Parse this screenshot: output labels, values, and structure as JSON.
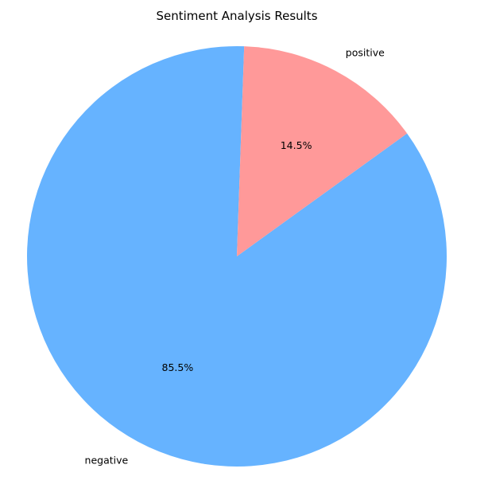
{
  "chart_data": {
    "type": "pie",
    "title": "Sentiment Analysis Results",
    "start_angle_deg": 88,
    "direction": "counterclockwise",
    "slices": [
      {
        "label": "negative",
        "value": 85.5,
        "pct_label": "85.5%",
        "color": "#66b3ff"
      },
      {
        "label": "positive",
        "value": 14.5,
        "pct_label": "14.5%",
        "color": "#ff9999"
      }
    ]
  }
}
